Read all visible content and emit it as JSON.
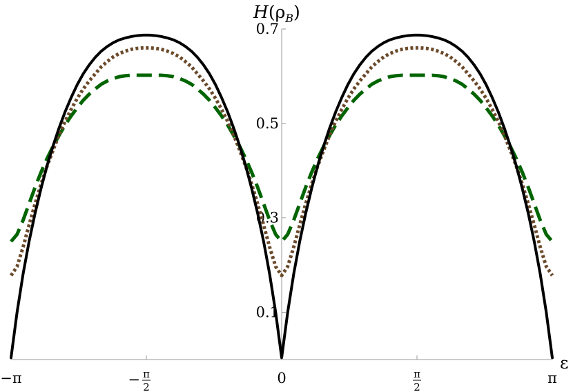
{
  "chart_data": {
    "type": "line",
    "title": "",
    "xlabel": "ε",
    "ylabel": "H(ρ_B)",
    "ylabel_main": "H",
    "ylabel_open": "(ρ",
    "ylabel_sub": "B",
    "ylabel_close": ")",
    "xlim": [
      -3.14159,
      3.14159
    ],
    "ylim": [
      0.0,
      0.7
    ],
    "y_axis_at_x": 0,
    "x_ticks": [
      {
        "value": -3.14159,
        "label": "−π"
      },
      {
        "value": -1.5708,
        "label": "−",
        "num": "π",
        "den": "2"
      },
      {
        "value": 0,
        "label": "0"
      },
      {
        "value": 1.5708,
        "label": "",
        "num": "π",
        "den": "2"
      },
      {
        "value": 3.14159,
        "label": "π"
      }
    ],
    "y_ticks": [
      {
        "value": 0.1,
        "label": "0.1"
      },
      {
        "value": 0.3,
        "label": "0.3"
      },
      {
        "value": 0.5,
        "label": "0.5"
      },
      {
        "value": 0.7,
        "label": "0.7"
      }
    ],
    "x": [
      0.0,
      0.0698,
      0.1396,
      0.2094,
      0.2793,
      0.3491,
      0.4189,
      0.4887,
      0.5585,
      0.6283,
      0.6981,
      0.7679,
      0.8378,
      0.9076,
      0.9774,
      1.0472,
      1.117,
      1.1868,
      1.2566,
      1.3265,
      1.3963,
      1.4661,
      1.5359,
      1.5708
    ],
    "series": [
      {
        "style": "solid",
        "color": "#000000",
        "width": 4,
        "values": [
          0.004,
          0.1,
          0.181,
          0.25,
          0.31,
          0.363,
          0.411,
          0.453,
          0.491,
          0.525,
          0.555,
          0.582,
          0.605,
          0.624,
          0.64,
          0.653,
          0.663,
          0.671,
          0.677,
          0.681,
          0.684,
          0.686,
          0.687,
          0.687
        ]
      },
      {
        "style": "dotted",
        "color": "#6b4a2b",
        "width": 5,
        "values": [
          0.178,
          0.197,
          0.238,
          0.285,
          0.33,
          0.372,
          0.41,
          0.444,
          0.476,
          0.505,
          0.53,
          0.553,
          0.573,
          0.59,
          0.605,
          0.62,
          0.631,
          0.641,
          0.648,
          0.653,
          0.657,
          0.659,
          0.66,
          0.66
        ]
      },
      {
        "style": "dashed",
        "color": "#006400",
        "width": 5,
        "values": [
          0.25,
          0.265,
          0.295,
          0.33,
          0.365,
          0.397,
          0.426,
          0.452,
          0.475,
          0.497,
          0.516,
          0.533,
          0.549,
          0.562,
          0.573,
          0.583,
          0.59,
          0.595,
          0.599,
          0.601,
          0.602,
          0.602,
          0.602,
          0.602
        ]
      }
    ],
    "grid": false,
    "legend": "none"
  }
}
